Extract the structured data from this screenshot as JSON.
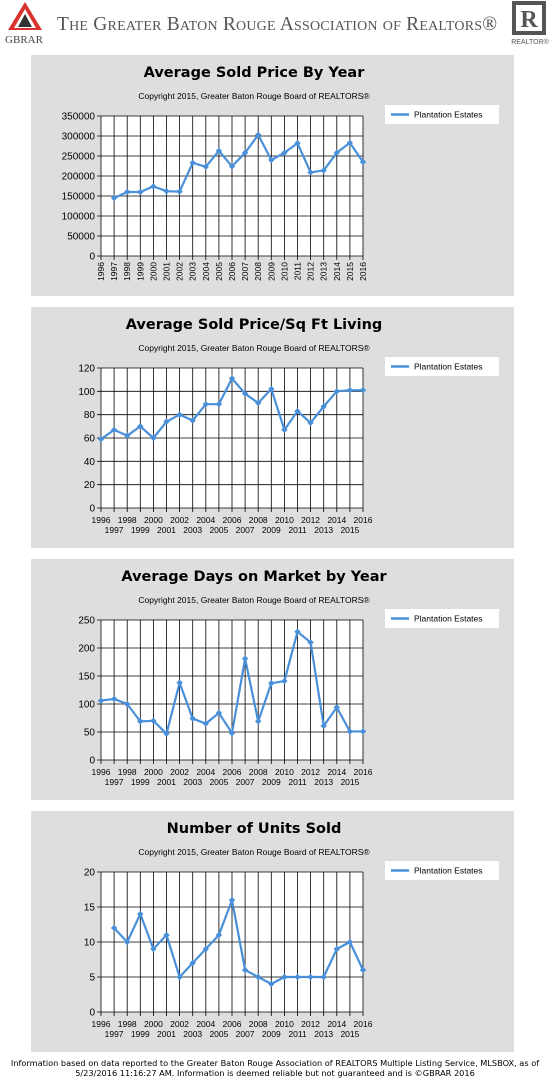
{
  "header": {
    "logo_left_text": "GBRAR",
    "title": "The Greater Baton Rouge Association of Realtors®",
    "logo_right_text": "REALTOR®"
  },
  "chart_data": [
    {
      "type": "line",
      "title": "Average Sold Price By Year",
      "subtitle": "Copyright 2015, Greater Baton Rouge Board of REALTORS®",
      "legend": "top-right",
      "grid": true,
      "x": [
        1996,
        1997,
        1998,
        1999,
        2000,
        2001,
        2002,
        2003,
        2004,
        2005,
        2006,
        2007,
        2008,
        2009,
        2010,
        2011,
        2012,
        2013,
        2014,
        2015,
        2016
      ],
      "x_tick_labels": [
        "1996",
        "1997",
        "1998",
        "1999",
        "2000",
        "2001",
        "2002",
        "2003",
        "2004",
        "2005",
        "2006",
        "2007",
        "2008",
        "2009",
        "2010",
        "2011",
        "2012",
        "2013",
        "2014",
        "2015",
        "2016"
      ],
      "y_ticks": [
        0,
        50000,
        100000,
        150000,
        200000,
        250000,
        300000,
        350000
      ],
      "ylim": [
        0,
        350000
      ],
      "series": [
        {
          "name": "Plantation Estates",
          "color": "#4a90d9",
          "x": [
            1997,
            1998,
            1999,
            2000,
            2001,
            2002,
            2003,
            2004,
            2005,
            2006,
            2007,
            2008,
            2009,
            2010,
            2011,
            2012,
            2013,
            2014,
            2015,
            2016
          ],
          "values": [
            145000,
            160000,
            160000,
            174000,
            162000,
            161000,
            233000,
            223000,
            263000,
            224000,
            258000,
            303000,
            240000,
            258000,
            282000,
            209000,
            214000,
            258000,
            283000,
            235000
          ]
        }
      ]
    },
    {
      "type": "line",
      "title": "Average Sold Price/Sq Ft Living",
      "subtitle": "Copyright 2015, Greater Baton Rouge Board of REALTORS®",
      "legend": "top-right",
      "grid": true,
      "x": [
        1996,
        1997,
        1998,
        1999,
        2000,
        2001,
        2002,
        2003,
        2004,
        2005,
        2006,
        2007,
        2008,
        2009,
        2010,
        2011,
        2012,
        2013,
        2014,
        2015,
        2016
      ],
      "x_tick_labels_top": [
        "1996",
        "1998",
        "2000",
        "2002",
        "2004",
        "2006",
        "2008",
        "2010",
        "2012",
        "2014",
        "2016"
      ],
      "x_tick_labels_bottom": [
        "1997",
        "1999",
        "2001",
        "2003",
        "2005",
        "2007",
        "2009",
        "2011",
        "2013",
        "2015"
      ],
      "y_ticks": [
        0,
        20,
        40,
        60,
        80,
        100,
        120
      ],
      "ylim": [
        0,
        120
      ],
      "series": [
        {
          "name": "Plantation Estates",
          "color": "#4a90d9",
          "x": [
            1996,
            1997,
            1998,
            1999,
            2000,
            2001,
            2002,
            2003,
            2004,
            2005,
            2006,
            2007,
            2008,
            2009,
            2010,
            2011,
            2012,
            2013,
            2014,
            2015,
            2016
          ],
          "values": [
            59,
            67,
            62,
            70,
            60,
            74,
            80,
            75,
            89,
            89,
            111,
            98,
            90,
            102,
            67,
            83,
            73,
            87,
            100,
            101,
            101
          ]
        }
      ]
    },
    {
      "type": "line",
      "title": "Average Days on Market by Year",
      "subtitle": "Copyright 2015, Greater Baton Rouge Board of REALTORS®",
      "legend": "top-right",
      "grid": true,
      "x": [
        1996,
        1997,
        1998,
        1999,
        2000,
        2001,
        2002,
        2003,
        2004,
        2005,
        2006,
        2007,
        2008,
        2009,
        2010,
        2011,
        2012,
        2013,
        2014,
        2015,
        2016
      ],
      "x_tick_labels_top": [
        "1996",
        "1998",
        "2000",
        "2002",
        "2004",
        "2006",
        "2008",
        "2010",
        "2012",
        "2014",
        "2016"
      ],
      "x_tick_labels_bottom": [
        "1997",
        "1999",
        "2001",
        "2003",
        "2005",
        "2007",
        "2009",
        "2011",
        "2013",
        "2015"
      ],
      "y_ticks": [
        0,
        50,
        100,
        150,
        200,
        250
      ],
      "ylim": [
        0,
        250
      ],
      "series": [
        {
          "name": "Plantation Estates",
          "color": "#4a90d9",
          "x": [
            1996,
            1997,
            1998,
            1999,
            2000,
            2001,
            2002,
            2003,
            2004,
            2005,
            2006,
            2007,
            2008,
            2009,
            2010,
            2011,
            2012,
            2013,
            2014,
            2015,
            2016
          ],
          "values": [
            106,
            109,
            100,
            69,
            70,
            47,
            138,
            74,
            65,
            84,
            48,
            181,
            69,
            137,
            141,
            229,
            210,
            61,
            94,
            51,
            51
          ]
        }
      ]
    },
    {
      "type": "line",
      "title": "Number of Units Sold",
      "subtitle": "Copyright 2015, Greater Baton Rouge Board of REALTORS®",
      "legend": "top-right",
      "grid": true,
      "x": [
        1996,
        1997,
        1998,
        1999,
        2000,
        2001,
        2002,
        2003,
        2004,
        2005,
        2006,
        2007,
        2008,
        2009,
        2010,
        2011,
        2012,
        2013,
        2014,
        2015,
        2016
      ],
      "x_tick_labels_top": [
        "1996",
        "1998",
        "2000",
        "2002",
        "2004",
        "2006",
        "2008",
        "2010",
        "2012",
        "2014",
        "2016"
      ],
      "x_tick_labels_bottom": [
        "1997",
        "1999",
        "2001",
        "2003",
        "2005",
        "2007",
        "2009",
        "2011",
        "2013",
        "2015"
      ],
      "y_ticks": [
        0,
        5,
        10,
        15,
        20
      ],
      "ylim": [
        0,
        20
      ],
      "series": [
        {
          "name": "Plantation Estates",
          "color": "#4a90d9",
          "x": [
            1997,
            1998,
            1999,
            2000,
            2001,
            2002,
            2003,
            2004,
            2005,
            2006,
            2007,
            2008,
            2009,
            2010,
            2011,
            2012,
            2013,
            2014,
            2015,
            2016
          ],
          "values": [
            12,
            10,
            14,
            9,
            11,
            5,
            7,
            9,
            11,
            16,
            6,
            5,
            4,
            5,
            5,
            5,
            5,
            9,
            10,
            6
          ]
        }
      ]
    }
  ],
  "footer": {
    "line1": "Information based on data reported to the Greater Baton Rouge Association of REALTORS Multiple Listing Service, MLSBOX, as of",
    "line2": "5/23/2016 11:16:27 AM. Information is deemed reliable but not guaranteed and is ©GBRAR 2016"
  }
}
